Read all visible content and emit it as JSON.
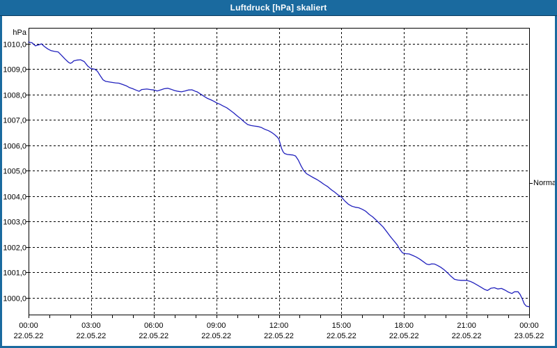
{
  "window": {
    "title": "Luftdruck [hPa] skaliert"
  },
  "colors": {
    "titlebar": "#1a6a9f",
    "line": "#2121bd",
    "grid": "#000000",
    "frame": "#000000",
    "background": "#ffffff"
  },
  "chart_data": {
    "type": "line",
    "title": "Luftdruck [hPa] skaliert",
    "x_axis": {
      "range_hours": [
        0,
        24
      ],
      "minor_tick_every_hours": 1,
      "grid": "dashed",
      "major_ticks": [
        {
          "hour": 0,
          "time": "00:00",
          "date": "22.05.22"
        },
        {
          "hour": 3,
          "time": "03:00",
          "date": "22.05.22"
        },
        {
          "hour": 6,
          "time": "06:00",
          "date": "22.05.22"
        },
        {
          "hour": 9,
          "time": "09:00",
          "date": "22.05.22"
        },
        {
          "hour": 12,
          "time": "12:00",
          "date": "22.05.22"
        },
        {
          "hour": 15,
          "time": "15:00",
          "date": "22.05.22"
        },
        {
          "hour": 18,
          "time": "18:00",
          "date": "22.05.22"
        },
        {
          "hour": 21,
          "time": "21:00",
          "date": "22.05.22"
        },
        {
          "hour": 24,
          "time": "00:00",
          "date": "23.05.22"
        }
      ]
    },
    "y_axis": {
      "unit": "hPa",
      "range": [
        999.33,
        1010.63
      ],
      "grid": "dashed",
      "ticks": [
        {
          "value": 1010,
          "label": "1010,0"
        },
        {
          "value": 1009,
          "label": "1009,0"
        },
        {
          "value": 1008,
          "label": "1008,0"
        },
        {
          "value": 1007,
          "label": "1007,0"
        },
        {
          "value": 1006,
          "label": "1006,0"
        },
        {
          "value": 1005,
          "label": "1005,0"
        },
        {
          "value": 1004,
          "label": "1004,0"
        },
        {
          "value": 1003,
          "label": "1003,0"
        },
        {
          "value": 1002,
          "label": "1002,0"
        },
        {
          "value": 1001,
          "label": "1001,0"
        },
        {
          "value": 1000,
          "label": "1000,0"
        }
      ]
    },
    "annotation": {
      "label": "Normal",
      "value": 1004.5
    },
    "series": [
      {
        "name": "Luftdruck",
        "color": "#2121bd",
        "points": [
          [
            0.0,
            1010.07
          ],
          [
            0.17,
            1010.04
          ],
          [
            0.33,
            1009.92
          ],
          [
            0.5,
            1009.96
          ],
          [
            0.62,
            1010.0
          ],
          [
            0.75,
            1009.9
          ],
          [
            0.92,
            1009.8
          ],
          [
            1.08,
            1009.73
          ],
          [
            1.25,
            1009.7
          ],
          [
            1.42,
            1009.68
          ],
          [
            1.58,
            1009.55
          ],
          [
            1.75,
            1009.4
          ],
          [
            1.92,
            1009.27
          ],
          [
            2.0,
            1009.23
          ],
          [
            2.08,
            1009.26
          ],
          [
            2.17,
            1009.33
          ],
          [
            2.33,
            1009.36
          ],
          [
            2.5,
            1009.37
          ],
          [
            2.67,
            1009.3
          ],
          [
            2.83,
            1009.13
          ],
          [
            3.0,
            1009.02
          ],
          [
            3.17,
            1009.0
          ],
          [
            3.3,
            1008.92
          ],
          [
            3.43,
            1008.75
          ],
          [
            3.57,
            1008.58
          ],
          [
            3.7,
            1008.52
          ],
          [
            3.92,
            1008.49
          ],
          [
            4.17,
            1008.46
          ],
          [
            4.33,
            1008.45
          ],
          [
            4.5,
            1008.4
          ],
          [
            4.67,
            1008.35
          ],
          [
            4.83,
            1008.28
          ],
          [
            5.0,
            1008.23
          ],
          [
            5.17,
            1008.17
          ],
          [
            5.3,
            1008.13
          ],
          [
            5.43,
            1008.2
          ],
          [
            5.67,
            1008.22
          ],
          [
            5.83,
            1008.2
          ],
          [
            6.0,
            1008.18
          ],
          [
            6.17,
            1008.14
          ],
          [
            6.33,
            1008.18
          ],
          [
            6.5,
            1008.23
          ],
          [
            6.67,
            1008.25
          ],
          [
            6.83,
            1008.21
          ],
          [
            7.0,
            1008.16
          ],
          [
            7.17,
            1008.13
          ],
          [
            7.33,
            1008.11
          ],
          [
            7.5,
            1008.14
          ],
          [
            7.67,
            1008.18
          ],
          [
            7.83,
            1008.19
          ],
          [
            8.0,
            1008.13
          ],
          [
            8.08,
            1008.11
          ],
          [
            8.25,
            1008.02
          ],
          [
            8.42,
            1007.93
          ],
          [
            8.58,
            1007.85
          ],
          [
            8.75,
            1007.79
          ],
          [
            8.92,
            1007.72
          ],
          [
            9.0,
            1007.68
          ],
          [
            9.17,
            1007.62
          ],
          [
            9.33,
            1007.55
          ],
          [
            9.5,
            1007.48
          ],
          [
            9.67,
            1007.38
          ],
          [
            9.83,
            1007.28
          ],
          [
            10.0,
            1007.16
          ],
          [
            10.17,
            1007.05
          ],
          [
            10.33,
            1006.93
          ],
          [
            10.5,
            1006.82
          ],
          [
            10.67,
            1006.78
          ],
          [
            10.83,
            1006.76
          ],
          [
            11.0,
            1006.74
          ],
          [
            11.17,
            1006.7
          ],
          [
            11.33,
            1006.63
          ],
          [
            11.5,
            1006.58
          ],
          [
            11.67,
            1006.5
          ],
          [
            11.8,
            1006.42
          ],
          [
            11.93,
            1006.32
          ],
          [
            12.0,
            1006.25
          ],
          [
            12.07,
            1006.05
          ],
          [
            12.13,
            1005.88
          ],
          [
            12.2,
            1005.75
          ],
          [
            12.27,
            1005.68
          ],
          [
            12.4,
            1005.64
          ],
          [
            12.53,
            1005.63
          ],
          [
            12.67,
            1005.62
          ],
          [
            12.8,
            1005.58
          ],
          [
            12.93,
            1005.42
          ],
          [
            13.07,
            1005.18
          ],
          [
            13.2,
            1005.0
          ],
          [
            13.33,
            1004.88
          ],
          [
            13.5,
            1004.8
          ],
          [
            13.67,
            1004.72
          ],
          [
            13.83,
            1004.65
          ],
          [
            14.0,
            1004.56
          ],
          [
            14.17,
            1004.46
          ],
          [
            14.33,
            1004.38
          ],
          [
            14.5,
            1004.26
          ],
          [
            14.67,
            1004.16
          ],
          [
            14.83,
            1004.05
          ],
          [
            15.0,
            1003.96
          ],
          [
            15.17,
            1003.8
          ],
          [
            15.33,
            1003.68
          ],
          [
            15.5,
            1003.6
          ],
          [
            15.67,
            1003.56
          ],
          [
            15.83,
            1003.54
          ],
          [
            16.0,
            1003.48
          ],
          [
            16.17,
            1003.4
          ],
          [
            16.33,
            1003.28
          ],
          [
            16.5,
            1003.18
          ],
          [
            16.67,
            1003.05
          ],
          [
            16.83,
            1002.92
          ],
          [
            17.0,
            1002.78
          ],
          [
            17.17,
            1002.6
          ],
          [
            17.33,
            1002.42
          ],
          [
            17.5,
            1002.25
          ],
          [
            17.67,
            1002.08
          ],
          [
            17.8,
            1001.9
          ],
          [
            17.93,
            1001.76
          ],
          [
            18.08,
            1001.73
          ],
          [
            18.25,
            1001.72
          ],
          [
            18.42,
            1001.66
          ],
          [
            18.58,
            1001.6
          ],
          [
            18.75,
            1001.52
          ],
          [
            18.92,
            1001.42
          ],
          [
            19.08,
            1001.32
          ],
          [
            19.2,
            1001.3
          ],
          [
            19.33,
            1001.33
          ],
          [
            19.47,
            1001.32
          ],
          [
            19.6,
            1001.27
          ],
          [
            19.75,
            1001.2
          ],
          [
            19.92,
            1001.1
          ],
          [
            20.08,
            1000.98
          ],
          [
            20.25,
            1000.84
          ],
          [
            20.42,
            1000.72
          ],
          [
            20.58,
            1000.69
          ],
          [
            20.75,
            1000.68
          ],
          [
            21.0,
            1000.68
          ],
          [
            21.17,
            1000.64
          ],
          [
            21.33,
            1000.58
          ],
          [
            21.5,
            1000.5
          ],
          [
            21.67,
            1000.42
          ],
          [
            21.87,
            1000.32
          ],
          [
            22.0,
            1000.28
          ],
          [
            22.17,
            1000.37
          ],
          [
            22.33,
            1000.39
          ],
          [
            22.5,
            1000.34
          ],
          [
            22.67,
            1000.36
          ],
          [
            22.83,
            1000.3
          ],
          [
            23.0,
            1000.22
          ],
          [
            23.17,
            1000.16
          ],
          [
            23.3,
            1000.23
          ],
          [
            23.47,
            1000.23
          ],
          [
            23.57,
            1000.12
          ],
          [
            23.67,
            999.95
          ],
          [
            23.77,
            999.75
          ],
          [
            23.87,
            999.66
          ],
          [
            24.0,
            999.64
          ]
        ]
      }
    ]
  }
}
